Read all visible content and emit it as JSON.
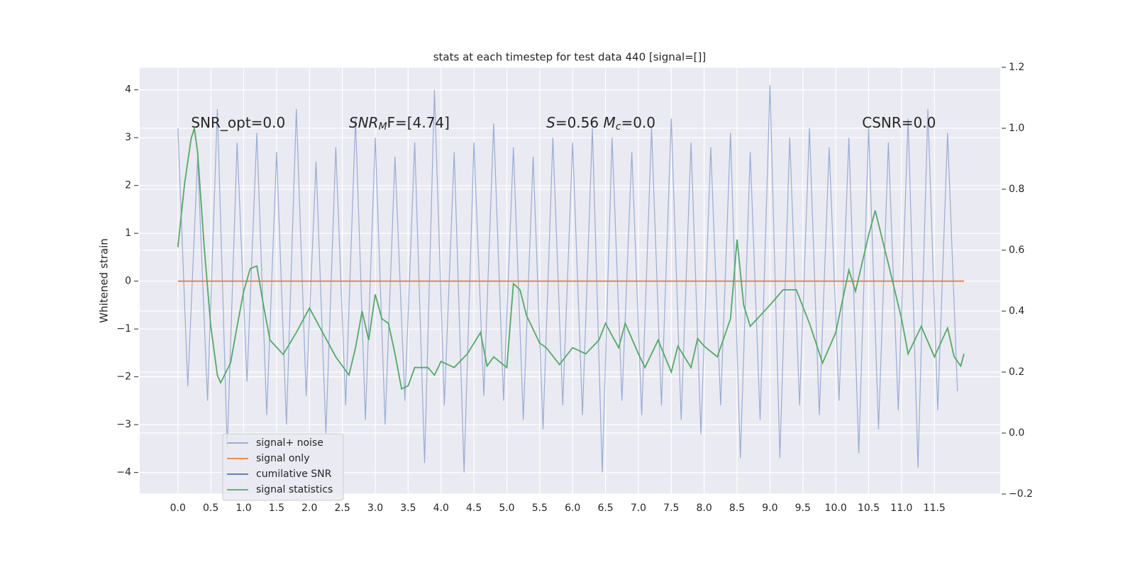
{
  "chart_data": {
    "type": "line",
    "title": "stats at each timestep for test data 440 [signal=[]]",
    "ylabel": "Whitened strain",
    "xlim": [
      -0.58,
      12.5
    ],
    "ylim": [
      -4.45,
      4.47
    ],
    "y2lim": [
      -0.2,
      1.2
    ],
    "xticks": [
      {
        "value": 0,
        "label": "0.0"
      },
      0.5,
      {
        "value": 1,
        "label": "1.0"
      },
      1.5,
      {
        "value": 2,
        "label": "2.0"
      },
      2.5,
      {
        "value": 3,
        "label": "3.0"
      },
      3.5,
      {
        "value": 4,
        "label": "4.0"
      },
      4.5,
      {
        "value": 5,
        "label": "5.0"
      },
      5.5,
      {
        "value": 6,
        "label": "6.0"
      },
      6.5,
      {
        "value": 7,
        "label": "7.0"
      },
      7.5,
      {
        "value": 8,
        "label": "8.0"
      },
      8.5,
      {
        "value": 9,
        "label": "9.0"
      },
      9.5,
      {
        "value": 10,
        "label": "10.0"
      },
      10.5,
      {
        "value": 11,
        "label": "11.0"
      },
      11.5
    ],
    "yticks": [
      {
        "value": -4,
        "label": "−4"
      },
      {
        "value": -3,
        "label": "−3"
      },
      {
        "value": -2,
        "label": "−2"
      },
      {
        "value": -1,
        "label": "−1"
      },
      0,
      1,
      2,
      3,
      4
    ],
    "y2ticks": [
      {
        "value": -0.2,
        "label": "−0.2"
      },
      {
        "value": 0,
        "label": "0.0"
      },
      0.2,
      0.4,
      0.6,
      0.8,
      {
        "value": 1,
        "label": "1.0"
      },
      1.2
    ],
    "grid": true,
    "legend": "lower left",
    "annotations": [
      {
        "x": 0.2,
        "y": 3.3,
        "parts": [
          {
            "text": "SNR_opt=0.0",
            "style": "normal"
          }
        ]
      },
      {
        "x": 2.6,
        "y": 3.3,
        "parts": [
          {
            "text": "SNR",
            "style": "italic"
          },
          {
            "text": "M",
            "style": "sub"
          },
          {
            "text": "F=[4.74]",
            "style": "normal"
          }
        ]
      },
      {
        "x": 5.6,
        "y": 3.3,
        "parts": [
          {
            "text": "S",
            "style": "italic"
          },
          {
            "text": "=0.56   ",
            "style": "normal"
          },
          {
            "text": "M",
            "style": "italic"
          },
          {
            "text": "c",
            "style": "sub"
          },
          {
            "text": "=0.0",
            "style": "normal"
          }
        ]
      },
      {
        "x": 10.4,
        "y": 3.3,
        "parts": [
          {
            "text": "CSNR=0.0",
            "style": "normal"
          }
        ]
      }
    ],
    "series": [
      {
        "name": "signal+ noise",
        "color": "#8fa5cf",
        "axis": "y",
        "x": [
          0,
          0.15,
          0.3,
          0.45,
          0.6,
          0.75,
          0.9,
          1.05,
          1.2,
          1.35,
          1.5,
          1.65,
          1.8,
          1.95,
          2.1,
          2.25,
          2.4,
          2.55,
          2.7,
          2.85,
          3,
          3.15,
          3.3,
          3.45,
          3.6,
          3.75,
          3.9,
          4.05,
          4.2,
          4.35,
          4.5,
          4.65,
          4.8,
          4.95,
          5.1,
          5.25,
          5.4,
          5.55,
          5.7,
          5.85,
          6,
          6.15,
          6.3,
          6.45,
          6.6,
          6.75,
          6.9,
          7.05,
          7.2,
          7.35,
          7.5,
          7.65,
          7.8,
          7.95,
          8.1,
          8.25,
          8.4,
          8.55,
          8.7,
          8.85,
          9,
          9.15,
          9.3,
          9.45,
          9.6,
          9.75,
          9.9,
          10.05,
          10.2,
          10.35,
          10.5,
          10.65,
          10.8,
          10.95,
          11.1,
          11.25,
          11.4,
          11.55,
          11.7,
          11.85
        ],
        "values": [
          3.2,
          -2.2,
          2.6,
          -2.5,
          3.6,
          -3.5,
          2.9,
          -2.1,
          3.1,
          -2.8,
          2.7,
          -3.0,
          3.6,
          -2.4,
          2.5,
          -3.2,
          2.8,
          -2.6,
          3.4,
          -2.9,
          3.0,
          -3.0,
          2.6,
          -2.5,
          2.9,
          -3.8,
          4.0,
          -2.6,
          2.7,
          -4.0,
          2.9,
          -2.4,
          3.3,
          -2.5,
          2.8,
          -2.9,
          2.6,
          -3.1,
          3.0,
          -2.6,
          2.9,
          -2.8,
          3.2,
          -4.0,
          3.0,
          -2.5,
          2.7,
          -2.8,
          3.2,
          -2.6,
          3.4,
          -2.9,
          2.9,
          -3.2,
          2.8,
          -2.6,
          3.1,
          -3.7,
          2.7,
          -2.9,
          4.1,
          -3.7,
          3.0,
          -2.6,
          3.2,
          -2.8,
          2.8,
          -2.5,
          3.0,
          -3.6,
          3.2,
          -3.1,
          2.9,
          -2.7,
          3.4,
          -3.9,
          3.6,
          -2.7,
          3.1,
          -2.3
        ]
      },
      {
        "name": "signal only",
        "color": "#dd8452",
        "axis": "y",
        "x": [
          0,
          11.95
        ],
        "values": [
          0,
          0
        ]
      },
      {
        "name": "cumilative SNR",
        "color": "#4c72b0",
        "axis": "y2",
        "x": [],
        "values": []
      },
      {
        "name": "signal statistics",
        "color": "#55a868",
        "axis": "y2",
        "x": [
          0,
          0.1,
          0.2,
          0.25,
          0.3,
          0.4,
          0.5,
          0.6,
          0.65,
          0.8,
          0.9,
          1.0,
          1.1,
          1.2,
          1.3,
          1.4,
          1.6,
          1.8,
          2.0,
          2.2,
          2.4,
          2.6,
          2.7,
          2.8,
          2.9,
          3.0,
          3.1,
          3.2,
          3.3,
          3.4,
          3.5,
          3.6,
          3.8,
          3.9,
          4.0,
          4.2,
          4.4,
          4.6,
          4.7,
          4.8,
          5.0,
          5.1,
          5.2,
          5.3,
          5.5,
          5.6,
          5.8,
          6.0,
          6.2,
          6.4,
          6.5,
          6.7,
          6.8,
          7.0,
          7.1,
          7.3,
          7.5,
          7.6,
          7.8,
          7.9,
          8.0,
          8.2,
          8.4,
          8.5,
          8.6,
          8.7,
          9.0,
          9.2,
          9.4,
          9.6,
          9.8,
          10.0,
          10.2,
          10.3,
          10.5,
          10.6,
          10.8,
          11.0,
          11.1,
          11.3,
          11.5,
          11.7,
          11.8,
          11.9,
          11.95
        ],
        "values": [
          0.61,
          0.815,
          0.965,
          1.0,
          0.92,
          0.61,
          0.35,
          0.19,
          0.165,
          0.23,
          0.35,
          0.465,
          0.54,
          0.548,
          0.42,
          0.305,
          0.258,
          0.33,
          0.41,
          0.33,
          0.25,
          0.19,
          0.28,
          0.4,
          0.305,
          0.455,
          0.375,
          0.36,
          0.26,
          0.145,
          0.155,
          0.215,
          0.215,
          0.19,
          0.235,
          0.215,
          0.26,
          0.33,
          0.22,
          0.25,
          0.215,
          0.49,
          0.47,
          0.385,
          0.295,
          0.28,
          0.225,
          0.28,
          0.26,
          0.305,
          0.36,
          0.28,
          0.36,
          0.26,
          0.215,
          0.305,
          0.2,
          0.285,
          0.215,
          0.31,
          0.285,
          0.25,
          0.375,
          0.635,
          0.42,
          0.35,
          0.42,
          0.47,
          0.47,
          0.36,
          0.23,
          0.33,
          0.535,
          0.465,
          0.65,
          0.73,
          0.555,
          0.375,
          0.26,
          0.35,
          0.25,
          0.345,
          0.25,
          0.22,
          0.26
        ]
      }
    ]
  }
}
